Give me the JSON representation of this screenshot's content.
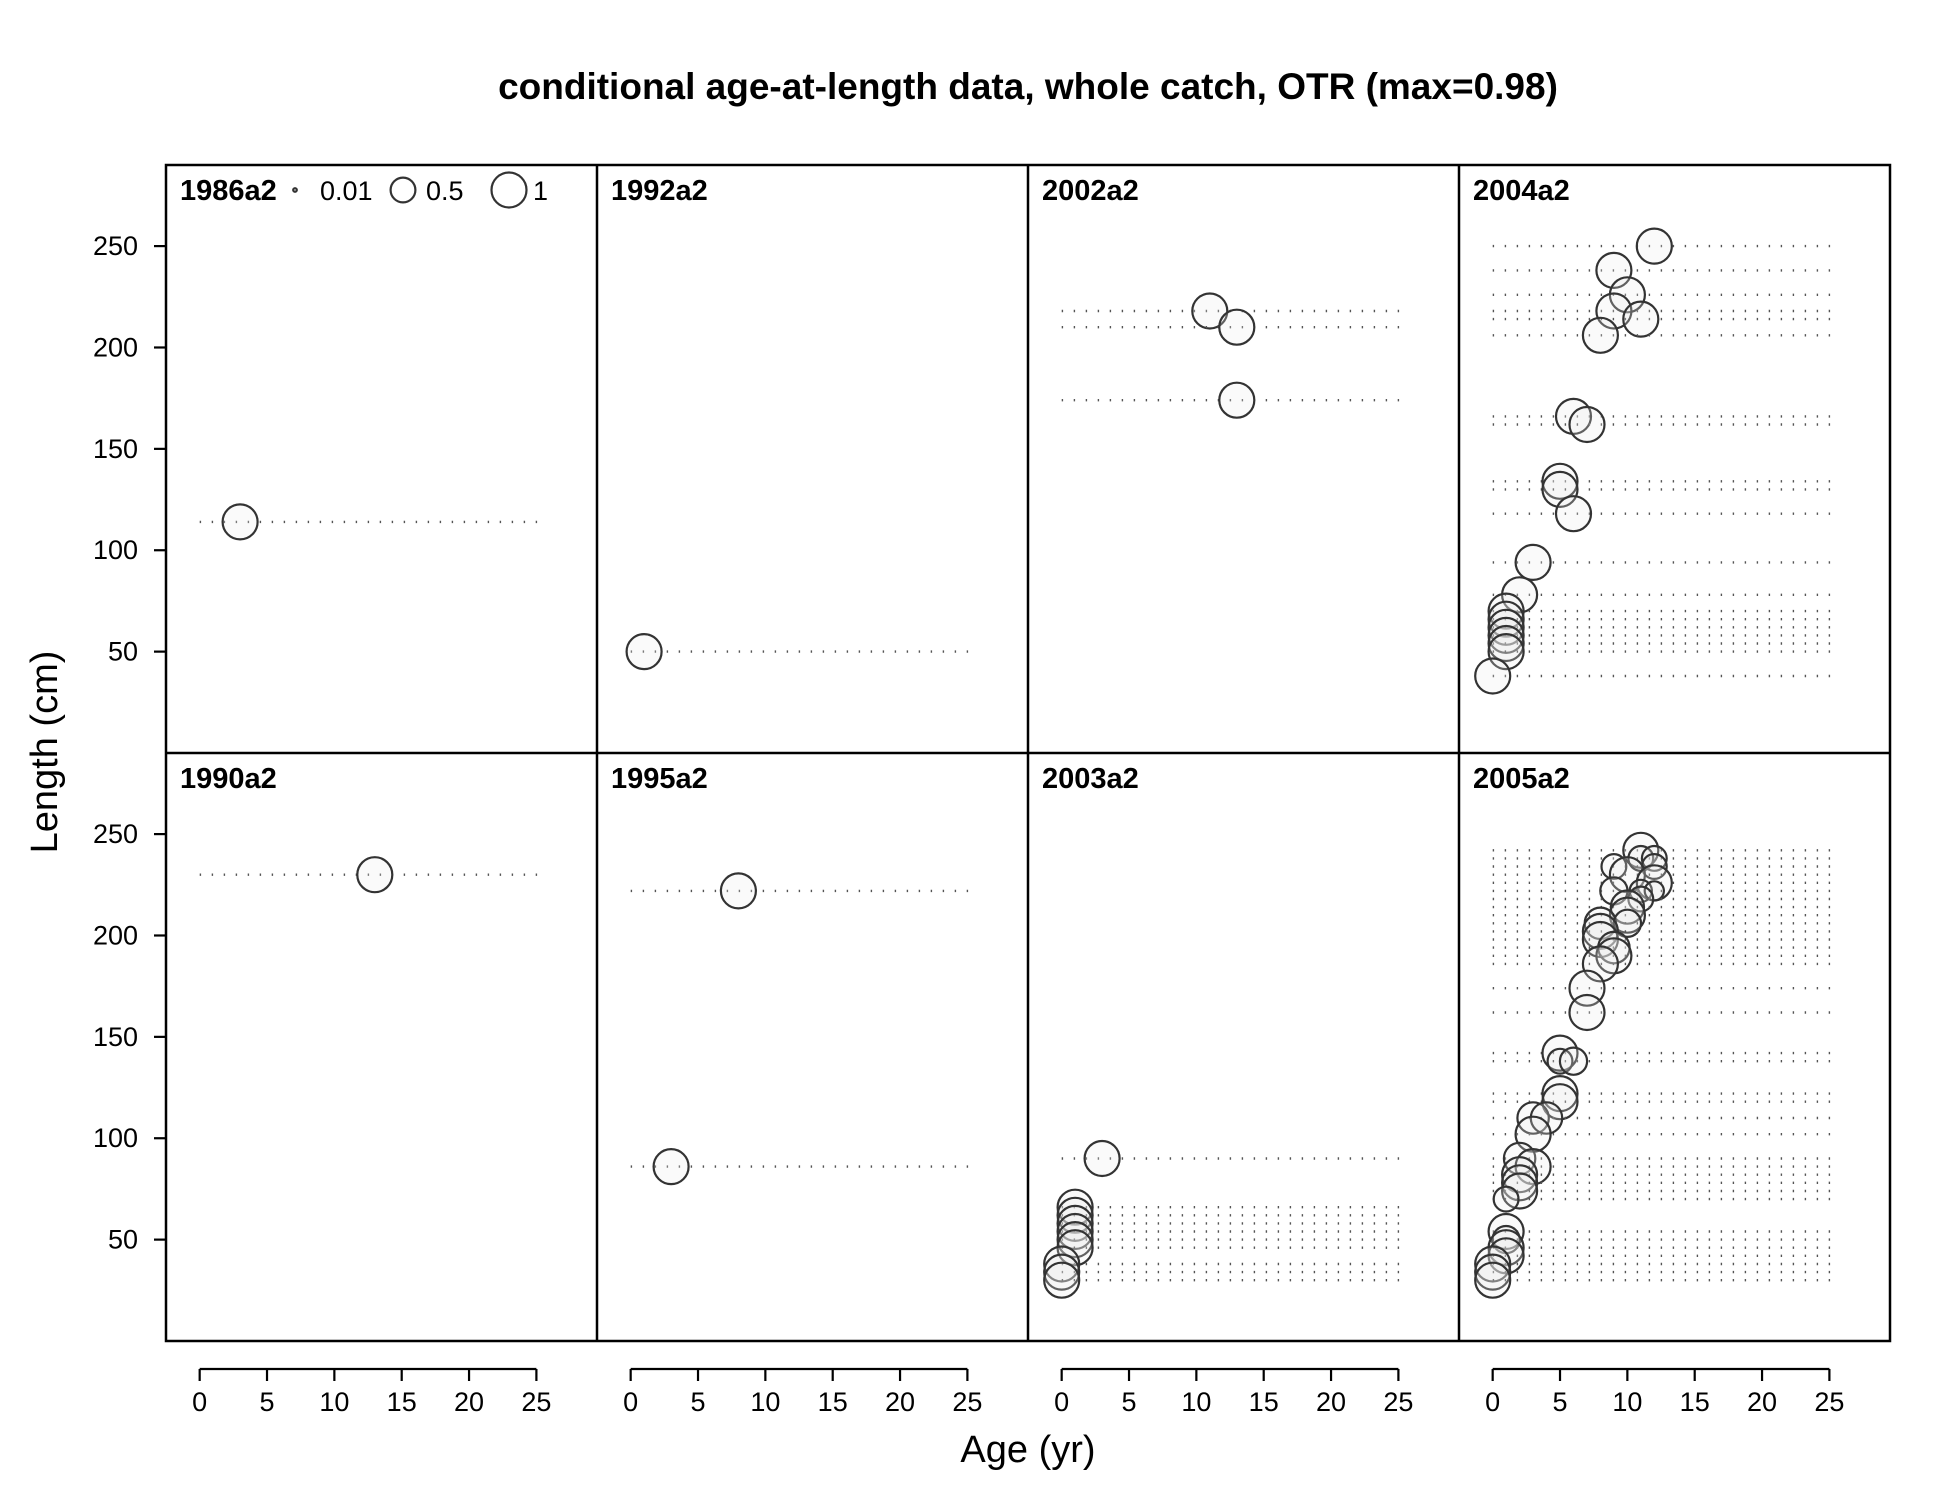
{
  "chart_data": {
    "type": "scatter",
    "subtype": "bubble-panels",
    "title": "conditional age-at-length data, whole catch, OTR (max=0.98)",
    "xlabel": "Age (yr)",
    "ylabel": "Length (cm)",
    "xlim": [
      -2.5,
      29.5
    ],
    "ylim": [
      0,
      290
    ],
    "xticks": [
      0,
      5,
      10,
      15,
      20,
      25
    ],
    "yticks": [
      50,
      100,
      150,
      200,
      250
    ],
    "legend": {
      "placement": "top-left",
      "entries": [
        {
          "label": "0.01",
          "value": 0.01
        },
        {
          "label": "0.5",
          "value": 0.5
        },
        {
          "label": "1",
          "value": 1
        }
      ]
    },
    "panels": [
      {
        "label": "1986a2",
        "row": 0,
        "col": 0,
        "rows": [
          {
            "length": 114,
            "points": [
              [
                3,
                1
              ]
            ]
          }
        ]
      },
      {
        "label": "1992a2",
        "row": 0,
        "col": 1,
        "rows": [
          {
            "length": 50,
            "points": [
              [
                1,
                1
              ]
            ]
          }
        ]
      },
      {
        "label": "2002a2",
        "row": 0,
        "col": 2,
        "rows": [
          {
            "length": 218,
            "points": [
              [
                11,
                1
              ]
            ]
          },
          {
            "length": 210,
            "points": [
              [
                13,
                1
              ]
            ]
          },
          {
            "length": 174,
            "points": [
              [
                13,
                1
              ]
            ]
          }
        ]
      },
      {
        "label": "2004a2",
        "row": 0,
        "col": 3,
        "rows": [
          {
            "length": 250,
            "points": [
              [
                12,
                1
              ]
            ]
          },
          {
            "length": 238,
            "points": [
              [
                9,
                1
              ]
            ]
          },
          {
            "length": 226,
            "points": [
              [
                10,
                1
              ]
            ]
          },
          {
            "length": 218,
            "points": [
              [
                9,
                1
              ]
            ]
          },
          {
            "length": 214,
            "points": [
              [
                11,
                1
              ]
            ]
          },
          {
            "length": 206,
            "points": [
              [
                8,
                1
              ]
            ]
          },
          {
            "length": 166,
            "points": [
              [
                6,
                1
              ]
            ]
          },
          {
            "length": 162,
            "points": [
              [
                7,
                1
              ]
            ]
          },
          {
            "length": 134,
            "points": [
              [
                5,
                1
              ]
            ]
          },
          {
            "length": 130,
            "points": [
              [
                5,
                1
              ]
            ]
          },
          {
            "length": 118,
            "points": [
              [
                6,
                1
              ]
            ]
          },
          {
            "length": 94,
            "points": [
              [
                3,
                1
              ]
            ]
          },
          {
            "length": 78,
            "points": [
              [
                2,
                1
              ]
            ]
          },
          {
            "length": 70,
            "points": [
              [
                1,
                1
              ]
            ]
          },
          {
            "length": 66,
            "points": [
              [
                1,
                1
              ]
            ]
          },
          {
            "length": 62,
            "points": [
              [
                1,
                1
              ]
            ]
          },
          {
            "length": 58,
            "points": [
              [
                1,
                1
              ]
            ]
          },
          {
            "length": 54,
            "points": [
              [
                1,
                1
              ]
            ]
          },
          {
            "length": 50,
            "points": [
              [
                1,
                1
              ]
            ]
          },
          {
            "length": 38,
            "points": [
              [
                0,
                1
              ]
            ]
          }
        ]
      },
      {
        "label": "1990a2",
        "row": 1,
        "col": 0,
        "rows": [
          {
            "length": 230,
            "points": [
              [
                13,
                1
              ]
            ]
          }
        ]
      },
      {
        "label": "1995a2",
        "row": 1,
        "col": 1,
        "rows": [
          {
            "length": 222,
            "points": [
              [
                8,
                1
              ]
            ]
          },
          {
            "length": 86,
            "points": [
              [
                3,
                1
              ]
            ]
          }
        ]
      },
      {
        "label": "2003a2",
        "row": 1,
        "col": 2,
        "rows": [
          {
            "length": 90,
            "points": [
              [
                3,
                1
              ]
            ]
          },
          {
            "length": 66,
            "points": [
              [
                1,
                1
              ]
            ]
          },
          {
            "length": 62,
            "points": [
              [
                1,
                1
              ]
            ]
          },
          {
            "length": 58,
            "points": [
              [
                1,
                1
              ]
            ]
          },
          {
            "length": 54,
            "points": [
              [
                1,
                1
              ]
            ]
          },
          {
            "length": 50,
            "points": [
              [
                1,
                1
              ]
            ]
          },
          {
            "length": 46,
            "points": [
              [
                1,
                1
              ]
            ]
          },
          {
            "length": 38,
            "points": [
              [
                0,
                1
              ]
            ]
          },
          {
            "length": 34,
            "points": [
              [
                0,
                1
              ]
            ]
          },
          {
            "length": 30,
            "points": [
              [
                0,
                1
              ]
            ]
          }
        ]
      },
      {
        "label": "2005a2",
        "row": 1,
        "col": 3,
        "rows": [
          {
            "length": 242,
            "points": [
              [
                11,
                1
              ]
            ]
          },
          {
            "length": 238,
            "points": [
              [
                11,
                0.5
              ],
              [
                12,
                0.5
              ]
            ]
          },
          {
            "length": 234,
            "points": [
              [
                9,
                0.5
              ],
              [
                12,
                0.5
              ]
            ]
          },
          {
            "length": 230,
            "points": [
              [
                10,
                1
              ]
            ]
          },
          {
            "length": 226,
            "points": [
              [
                12,
                1
              ]
            ]
          },
          {
            "length": 222,
            "points": [
              [
                9,
                0.6
              ],
              [
                11,
                0.4
              ],
              [
                12,
                0.3
              ]
            ]
          },
          {
            "length": 218,
            "points": [
              [
                11,
                0.5
              ]
            ]
          },
          {
            "length": 214,
            "points": [
              [
                10,
                0.9
              ]
            ]
          },
          {
            "length": 210,
            "points": [
              [
                10,
                1
              ]
            ]
          },
          {
            "length": 206,
            "points": [
              [
                8,
                0.8
              ],
              [
                10,
                0.6
              ]
            ]
          },
          {
            "length": 202,
            "points": [
              [
                8,
                1
              ]
            ]
          },
          {
            "length": 198,
            "points": [
              [
                8,
                1
              ]
            ]
          },
          {
            "length": 194,
            "points": [
              [
                9,
                0.8
              ]
            ]
          },
          {
            "length": 190,
            "points": [
              [
                9,
                1
              ]
            ]
          },
          {
            "length": 186,
            "points": [
              [
                8,
                1
              ]
            ]
          },
          {
            "length": 174,
            "points": [
              [
                7,
                1
              ]
            ]
          },
          {
            "length": 162,
            "points": [
              [
                7,
                1
              ]
            ]
          },
          {
            "length": 142,
            "points": [
              [
                5,
                1
              ]
            ]
          },
          {
            "length": 138,
            "points": [
              [
                5,
                0.5
              ],
              [
                6,
                0.6
              ]
            ]
          },
          {
            "length": 122,
            "points": [
              [
                5,
                1
              ]
            ]
          },
          {
            "length": 118,
            "points": [
              [
                5,
                1
              ]
            ]
          },
          {
            "length": 110,
            "points": [
              [
                3,
                0.8
              ],
              [
                4,
                0.8
              ]
            ]
          },
          {
            "length": 102,
            "points": [
              [
                3,
                1
              ]
            ]
          },
          {
            "length": 90,
            "points": [
              [
                2,
                0.8
              ]
            ]
          },
          {
            "length": 86,
            "points": [
              [
                3,
                1
              ]
            ]
          },
          {
            "length": 82,
            "points": [
              [
                2,
                1
              ]
            ]
          },
          {
            "length": 78,
            "points": [
              [
                2,
                1
              ]
            ]
          },
          {
            "length": 74,
            "points": [
              [
                2,
                1
              ]
            ]
          },
          {
            "length": 70,
            "points": [
              [
                1,
                0.5
              ]
            ]
          },
          {
            "length": 54,
            "points": [
              [
                1,
                1
              ]
            ]
          },
          {
            "length": 50,
            "points": [
              [
                1,
                0.6
              ]
            ]
          },
          {
            "length": 46,
            "points": [
              [
                1,
                1
              ]
            ]
          },
          {
            "length": 42,
            "points": [
              [
                1,
                1
              ]
            ]
          },
          {
            "length": 38,
            "points": [
              [
                0,
                1
              ]
            ]
          },
          {
            "length": 34,
            "points": [
              [
                0,
                1
              ]
            ]
          },
          {
            "length": 30,
            "points": [
              [
                0,
                1
              ]
            ]
          }
        ]
      }
    ]
  }
}
